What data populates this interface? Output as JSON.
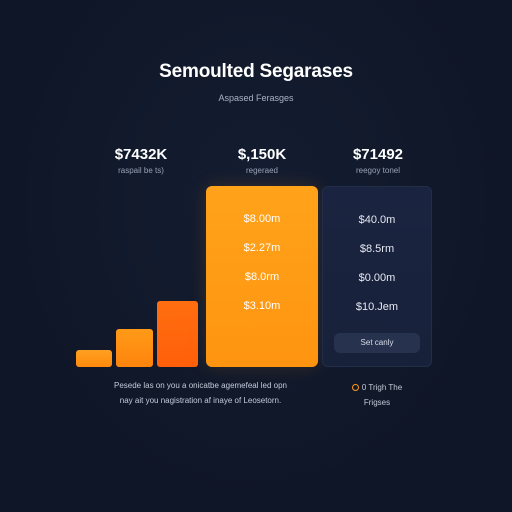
{
  "header": {
    "title": "Semoulted Segarases",
    "subtitle": "Aspased Ferasges"
  },
  "plans": [
    {
      "price": "$7432K",
      "caption": "raspail be ts)"
    },
    {
      "price": "$,150K",
      "caption": "regeraed"
    },
    {
      "price": "$71492",
      "caption": "reegoy tonel"
    }
  ],
  "orange_card": {
    "features": [
      "$8.00m",
      "$2.27m",
      "$8.0rm",
      "$3.10m"
    ]
  },
  "dark_card": {
    "features": [
      "$40.0m",
      "$8.5rm",
      "$0.00m",
      "$10.Jem"
    ],
    "cta_label": "Set canly"
  },
  "bars": {
    "colors": [
      "#ff9414",
      "#ff8c10",
      "#ff6a0c"
    ],
    "relative_heights": [
      0.25,
      0.57,
      1.0
    ]
  },
  "footnote": {
    "line1": "Pesede las on you a onicatbe agemefeal led opn",
    "line2": "nay ait you nagistration af inaye of Leosetorn."
  },
  "legend": {
    "label_line1": "0 Trigh The",
    "label_line2": "Frigses",
    "dot_color": "#ff9a1a"
  },
  "colors": {
    "background": "#0f1627",
    "accent": "#ff9a1a",
    "card_dark": "#1a2440"
  }
}
